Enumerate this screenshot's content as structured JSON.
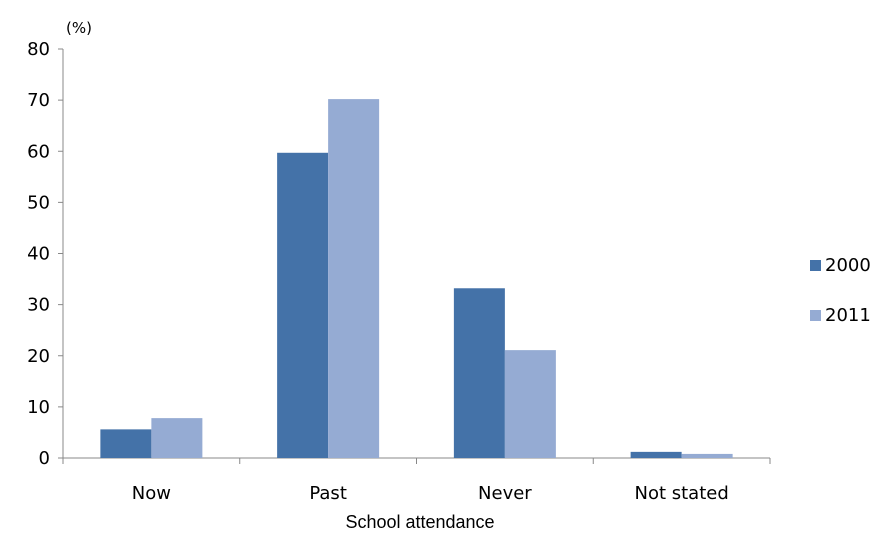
{
  "chart_data": {
    "type": "bar",
    "categories": [
      "Now",
      "Past",
      "Never",
      "Not stated"
    ],
    "series": [
      {
        "name": "2000",
        "values": [
          5.6,
          59.7,
          33.2,
          1.2
        ],
        "color": "#4472A8"
      },
      {
        "name": "2011",
        "values": [
          7.8,
          70.2,
          21.1,
          0.8
        ],
        "color": "#95ABD3"
      }
    ],
    "ylim": [
      0,
      80
    ],
    "yticks": [
      0,
      10,
      20,
      30,
      40,
      50,
      60,
      70,
      80
    ],
    "y_unit": "(%)",
    "xlabel": "School attendance",
    "ylabel": "",
    "title": "",
    "grid": false,
    "legend_position": "right"
  }
}
